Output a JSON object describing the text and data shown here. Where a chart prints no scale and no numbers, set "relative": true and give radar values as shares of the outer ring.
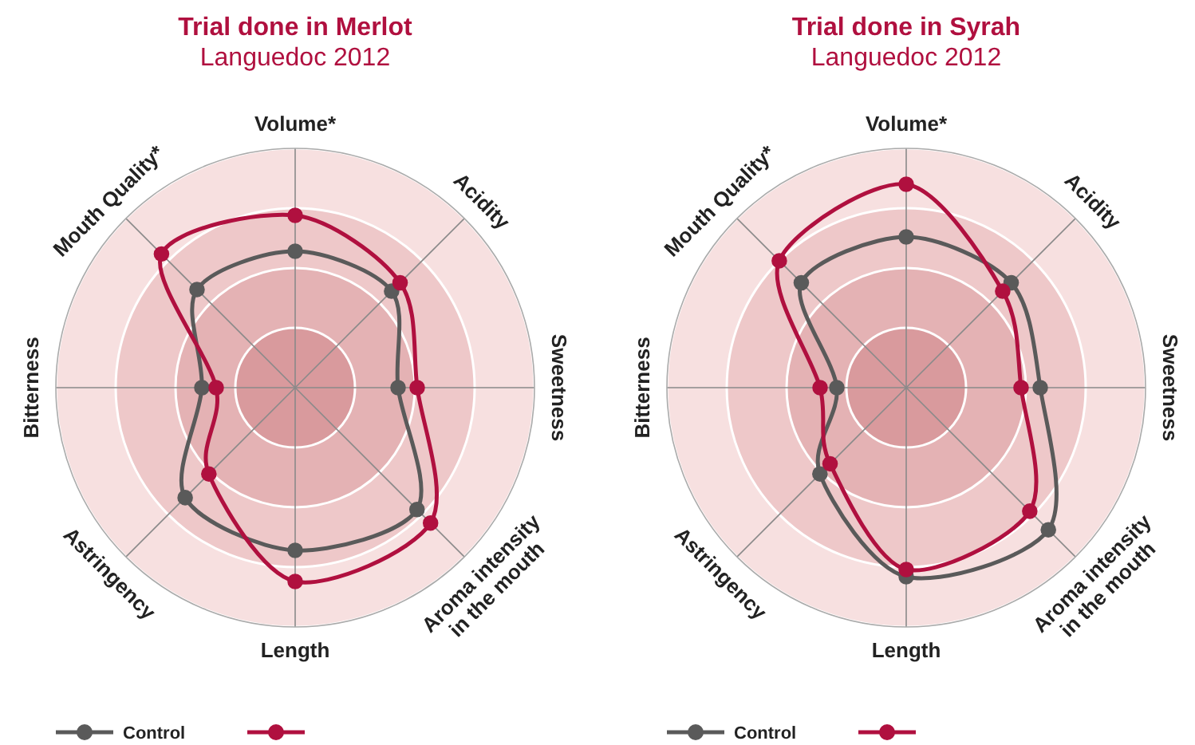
{
  "chart_data": [
    {
      "type": "radar",
      "title": "Trial done in Merlot",
      "subtitle": "Languedoc 2012",
      "relative": true,
      "grid": true,
      "legend": "bottom",
      "marker": "circle",
      "categories": [
        "Volume*",
        "Acidity",
        "Sweetness",
        "Aroma intensity in the mouth",
        "Length",
        "Astringency",
        "Bitterness",
        "Mouth Quality*"
      ],
      "series": [
        {
          "name": "Control",
          "color": "#5a5a5a",
          "values": [
            0.57,
            0.57,
            0.43,
            0.72,
            0.68,
            0.65,
            0.39,
            0.58
          ]
        },
        {
          "color": "#b0103f",
          "values": [
            0.72,
            0.62,
            0.51,
            0.8,
            0.81,
            0.51,
            0.33,
            0.79
          ]
        }
      ]
    },
    {
      "type": "radar",
      "title": "Trial done in Syrah",
      "subtitle": "Languedoc 2012",
      "relative": true,
      "grid": true,
      "legend": "bottom",
      "marker": "circle",
      "categories": [
        "Volume*",
        "Acidity",
        "Sweetness",
        "Aroma intensity in the mouth",
        "Length",
        "Astringency",
        "Bitterness",
        "Mouth Quality*"
      ],
      "series": [
        {
          "name": "Control",
          "color": "#5a5a5a",
          "values": [
            0.63,
            0.62,
            0.56,
            0.84,
            0.79,
            0.51,
            0.29,
            0.62
          ]
        },
        {
          "color": "#b0103f",
          "values": [
            0.85,
            0.57,
            0.48,
            0.73,
            0.76,
            0.45,
            0.36,
            0.75
          ]
        }
      ]
    }
  ]
}
